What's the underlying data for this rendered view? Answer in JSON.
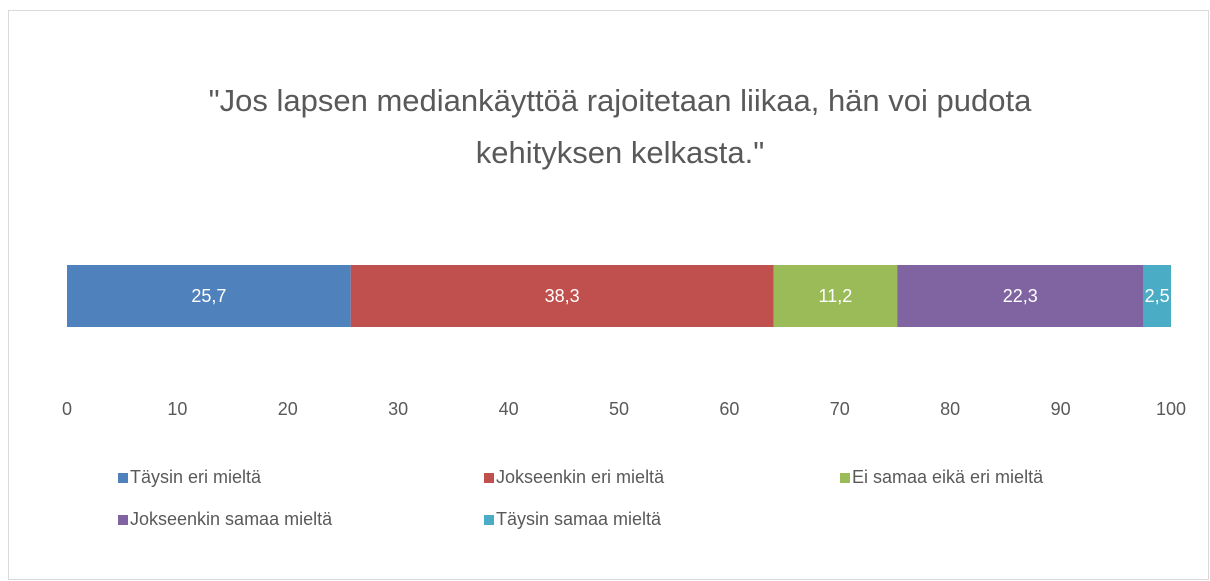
{
  "chart_data": {
    "type": "stacked_barh",
    "title": [
      "\"Jos lapsen mediankäyttöä rajoitetaan liikaa, hän voi pudota",
      "kehityksen kelkasta.\""
    ],
    "categories": [
      null
    ],
    "series": [
      {
        "name": "Täysin eri mieltä",
        "color": "#4f81bd",
        "values": [
          25.7
        ],
        "value_labels": [
          "25,7"
        ]
      },
      {
        "name": "Jokseenkin eri mieltä",
        "color": "#c0504d",
        "values": [
          38.3
        ],
        "value_labels": [
          "38,3"
        ]
      },
      {
        "name": "Ei samaa eikä eri mieltä",
        "color": "#9bbb59",
        "values": [
          11.2
        ],
        "value_labels": [
          "11,2"
        ]
      },
      {
        "name": "Jokseenkin samaa mieltä",
        "color": "#8064a2",
        "values": [
          22.3
        ],
        "value_labels": [
          "22,3"
        ]
      },
      {
        "name": "Täysin samaa mieltä",
        "color": "#4bacc6",
        "values": [
          2.5
        ],
        "value_labels": [
          "2,5"
        ]
      }
    ],
    "xlim": [
      0,
      100
    ],
    "xticks": [
      0,
      10,
      20,
      30,
      40,
      50,
      60,
      70,
      80,
      90,
      100
    ],
    "grid": false,
    "legend": "bottom"
  }
}
